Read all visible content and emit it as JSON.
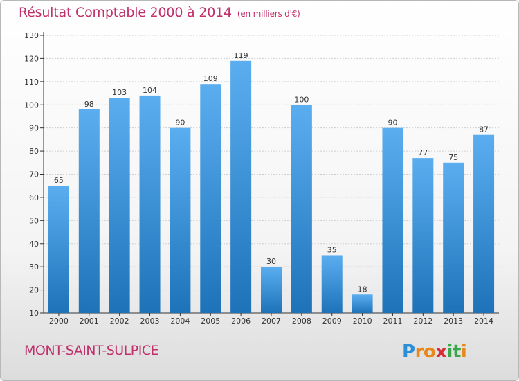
{
  "chart_data": {
    "type": "bar",
    "title": "Résultat Comptable 2000 à 2014",
    "subtitle": "(en milliers d'€)",
    "categories": [
      "2000",
      "2001",
      "2002",
      "2003",
      "2004",
      "2005",
      "2006",
      "2007",
      "2008",
      "2009",
      "2010",
      "2011",
      "2012",
      "2013",
      "2014"
    ],
    "values": [
      65,
      98,
      103,
      104,
      90,
      109,
      119,
      30,
      100,
      35,
      18,
      90,
      77,
      75,
      87
    ],
    "ylim": [
      10,
      130
    ],
    "yticks": [
      10,
      20,
      30,
      40,
      50,
      60,
      70,
      80,
      90,
      100,
      110,
      120,
      130
    ],
    "grid": true,
    "xlabel": "",
    "ylabel": ""
  },
  "footer": {
    "location": "MONT-SAINT-SULPICE"
  },
  "logo": {
    "letters": [
      "P",
      "r",
      "o",
      "x",
      "i",
      "t",
      "i"
    ],
    "colors": [
      "#2a8fd6",
      "#e8871a",
      "#e8871a",
      "#d62e3a",
      "#3aa64a",
      "#3aa64a",
      "#e8871a"
    ]
  },
  "colors": {
    "title": "#c0306a",
    "bar_top": "#5aaef0",
    "bar_bottom": "#1e72b8"
  }
}
